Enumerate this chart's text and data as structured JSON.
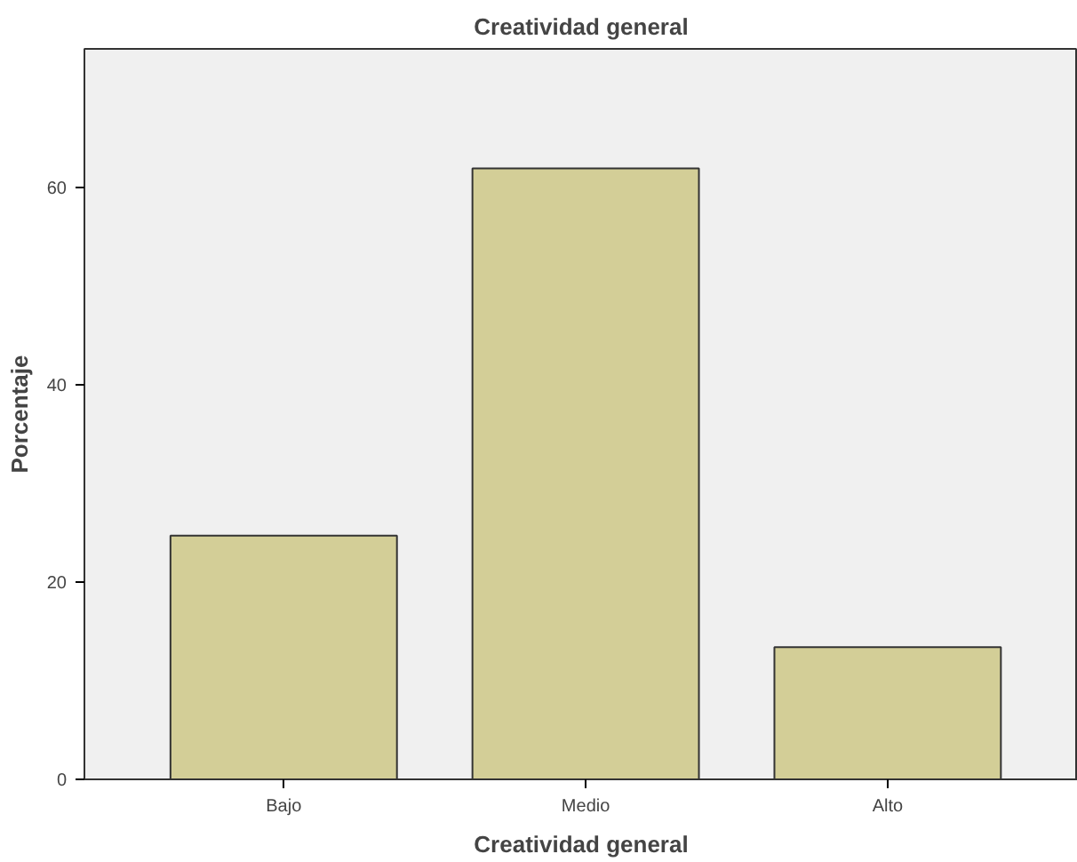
{
  "chart_data": {
    "type": "bar",
    "title": "Creatividad general",
    "xlabel": "Creatividad general",
    "ylabel": "Porcentaje",
    "categories": [
      "Bajo",
      "Medio",
      "Alto"
    ],
    "values": [
      24.7,
      61.9,
      13.4
    ],
    "color": "#d3ce97",
    "ylim": [
      0,
      74
    ],
    "yticks": [
      0,
      20,
      40,
      60
    ],
    "grid": false
  }
}
